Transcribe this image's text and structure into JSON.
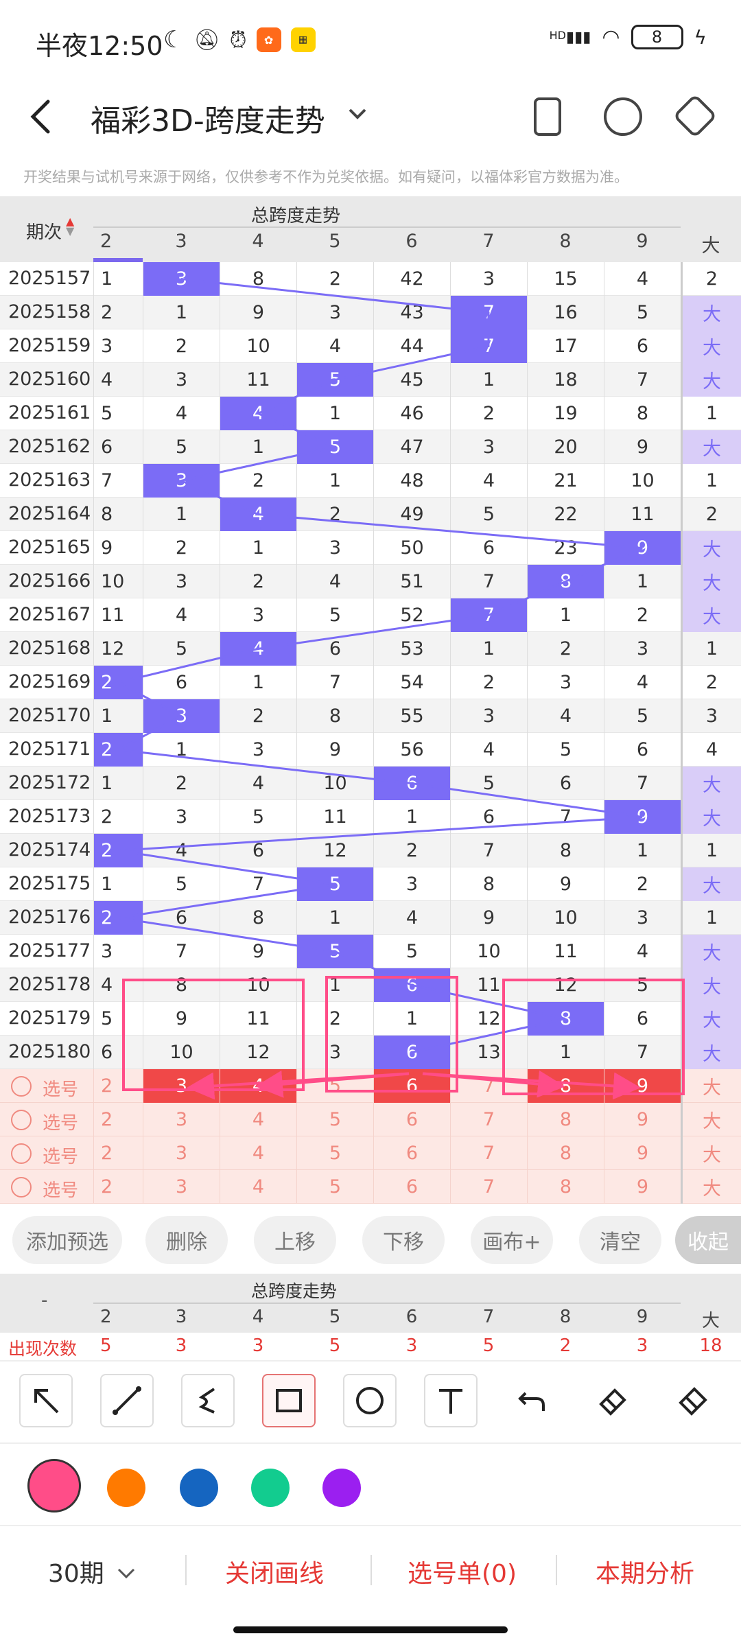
{
  "status": {
    "time": "半夜12:50",
    "hd": "HD",
    "battery": "8"
  },
  "header": {
    "title": "福彩3D-跨度走势",
    "dropdown_icon": "chevron-down-icon"
  },
  "notice": "开奖结果与试机号来源于网络，仅供参考不作为兑奖依据。如有疑问，以福体彩官方数据为准。",
  "table": {
    "period_header": "期次",
    "group_title": "总跨度走势",
    "columns": [
      "2",
      "3",
      "4",
      "5",
      "6",
      "7",
      "8",
      "9"
    ],
    "big_header": "大",
    "rows": [
      {
        "period": "2025157",
        "values": [
          "1",
          "3",
          "8",
          "2",
          "42",
          "3",
          "15",
          "4"
        ],
        "hit": "3",
        "big": "2"
      },
      {
        "period": "2025158",
        "values": [
          "2",
          "1",
          "9",
          "3",
          "43",
          "7",
          "16",
          "5"
        ],
        "hit": "7",
        "big": "大"
      },
      {
        "period": "2025159",
        "values": [
          "3",
          "2",
          "10",
          "4",
          "44",
          "7",
          "17",
          "6"
        ],
        "hit": "7",
        "big": "大"
      },
      {
        "period": "2025160",
        "values": [
          "4",
          "3",
          "11",
          "5",
          "45",
          "1",
          "18",
          "7"
        ],
        "hit": "5",
        "big": "大"
      },
      {
        "period": "2025161",
        "values": [
          "5",
          "4",
          "4",
          "1",
          "46",
          "2",
          "19",
          "8"
        ],
        "hit": "4",
        "big": "1"
      },
      {
        "period": "2025162",
        "values": [
          "6",
          "5",
          "1",
          "5",
          "47",
          "3",
          "20",
          "9"
        ],
        "hit": "5",
        "big": "大"
      },
      {
        "period": "2025163",
        "values": [
          "7",
          "3",
          "2",
          "1",
          "48",
          "4",
          "21",
          "10"
        ],
        "hit": "3",
        "big": "1"
      },
      {
        "period": "2025164",
        "values": [
          "8",
          "1",
          "4",
          "2",
          "49",
          "5",
          "22",
          "11"
        ],
        "hit": "4",
        "big": "2"
      },
      {
        "period": "2025165",
        "values": [
          "9",
          "2",
          "1",
          "3",
          "50",
          "6",
          "23",
          "9"
        ],
        "hit": "9",
        "big": "大"
      },
      {
        "period": "2025166",
        "values": [
          "10",
          "3",
          "2",
          "4",
          "51",
          "7",
          "8",
          "1"
        ],
        "hit": "8",
        "big": "大"
      },
      {
        "period": "2025167",
        "values": [
          "11",
          "4",
          "3",
          "5",
          "52",
          "7",
          "1",
          "2"
        ],
        "hit": "7",
        "big": "大"
      },
      {
        "period": "2025168",
        "values": [
          "12",
          "5",
          "4",
          "6",
          "53",
          "1",
          "2",
          "3"
        ],
        "hit": "4",
        "big": "1"
      },
      {
        "period": "2025169",
        "values": [
          "2",
          "6",
          "1",
          "7",
          "54",
          "2",
          "3",
          "4"
        ],
        "hit": "2",
        "big": "2"
      },
      {
        "period": "2025170",
        "values": [
          "1",
          "3",
          "2",
          "8",
          "55",
          "3",
          "4",
          "5"
        ],
        "hit": "3",
        "big": "3"
      },
      {
        "period": "2025171",
        "values": [
          "2",
          "1",
          "3",
          "9",
          "56",
          "4",
          "5",
          "6"
        ],
        "hit": "2",
        "big": "4"
      },
      {
        "period": "2025172",
        "values": [
          "1",
          "2",
          "4",
          "10",
          "6",
          "5",
          "6",
          "7"
        ],
        "hit": "6",
        "big": "大"
      },
      {
        "period": "2025173",
        "values": [
          "2",
          "3",
          "5",
          "11",
          "1",
          "6",
          "7",
          "9"
        ],
        "hit": "9",
        "big": "大"
      },
      {
        "period": "2025174",
        "values": [
          "2",
          "4",
          "6",
          "12",
          "2",
          "7",
          "8",
          "1"
        ],
        "hit": "2",
        "big": "1"
      },
      {
        "period": "2025175",
        "values": [
          "1",
          "5",
          "7",
          "5",
          "3",
          "8",
          "9",
          "2"
        ],
        "hit": "5",
        "big": "大"
      },
      {
        "period": "2025176",
        "values": [
          "2",
          "6",
          "8",
          "1",
          "4",
          "9",
          "10",
          "3"
        ],
        "hit": "2",
        "big": "1"
      },
      {
        "period": "2025177",
        "values": [
          "3",
          "7",
          "9",
          "5",
          "5",
          "10",
          "11",
          "4"
        ],
        "hit": "5",
        "big": "大"
      },
      {
        "period": "2025178",
        "values": [
          "4",
          "8",
          "10",
          "1",
          "6",
          "11",
          "12",
          "5"
        ],
        "hit": "6",
        "big": "大"
      },
      {
        "period": "2025179",
        "values": [
          "5",
          "9",
          "11",
          "2",
          "1",
          "12",
          "8",
          "6"
        ],
        "hit": "8",
        "big": "大"
      },
      {
        "period": "2025180",
        "values": [
          "6",
          "10",
          "12",
          "3",
          "6",
          "13",
          "1",
          "7"
        ],
        "hit": "6",
        "big": "大"
      }
    ],
    "select_label": "选号",
    "select_rows": 4,
    "selected_first_row": [
      "3",
      "4",
      "6",
      "8",
      "9"
    ]
  },
  "buttons": [
    "添加预选",
    "删除",
    "上移",
    "下移",
    "画布+",
    "清空",
    "收起"
  ],
  "stats": {
    "dash": "-",
    "group_title": "总跨度走势",
    "columns": [
      "2",
      "3",
      "4",
      "5",
      "6",
      "7",
      "8",
      "9"
    ],
    "big_header": "大",
    "label": "出现次数",
    "values": [
      "5",
      "3",
      "3",
      "5",
      "3",
      "5",
      "2",
      "3"
    ],
    "big": "18"
  },
  "tools": [
    "arrow-icon",
    "line-icon",
    "curve-icon",
    "rectangle-icon",
    "circle-icon",
    "text-icon",
    "undo-icon",
    "eraser-icon",
    "clear-all-icon"
  ],
  "colors": [
    "#ff4d88",
    "#ff7a00",
    "#1565c0",
    "#12cc8f",
    "#9b1ff0"
  ],
  "bottom": {
    "periods": "30期",
    "close_lines": "关闭画线",
    "pick_list": "选号单(0)",
    "analysis": "本期分析"
  }
}
